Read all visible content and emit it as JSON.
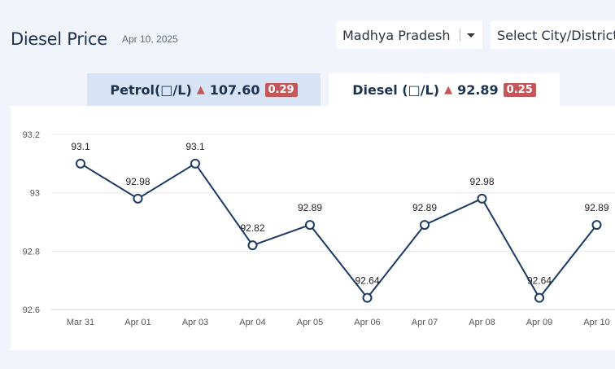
{
  "header": {
    "title": "Diesel Price",
    "date": "Apr 10, 2025"
  },
  "filters": {
    "state": "Madhya Pradesh",
    "city": "Select City/District"
  },
  "tabs": [
    {
      "label": "Petrol(□/L)",
      "price": "107.60",
      "change": "0.29",
      "active": false
    },
    {
      "label": "Diesel (□/L)",
      "price": "92.89",
      "change": "0.25",
      "active": true
    }
  ],
  "colors": {
    "line": "#1c3a63",
    "badge": "#c4575a",
    "active_tab": "#ffffff",
    "inactive_tab": "#d9e3f6"
  },
  "chart_data": {
    "type": "line",
    "categories": [
      "Mar 31",
      "Apr 01",
      "Apr 03",
      "Apr 04",
      "Apr 05",
      "Apr 06",
      "Apr 07",
      "Apr 08",
      "Apr 09",
      "Apr 10"
    ],
    "values": [
      93.1,
      92.98,
      93.1,
      92.82,
      92.89,
      92.64,
      92.89,
      92.98,
      92.64,
      92.89
    ],
    "data_labels": [
      "93.1",
      "92.98",
      "93.1",
      "92.82",
      "92.89",
      "92.64",
      "92.89",
      "92.98",
      "92.64",
      "92.89"
    ],
    "yticks": [
      "93.2",
      "93",
      "92.8",
      "92.6"
    ],
    "ylim": [
      92.6,
      93.2
    ],
    "grid": true
  }
}
